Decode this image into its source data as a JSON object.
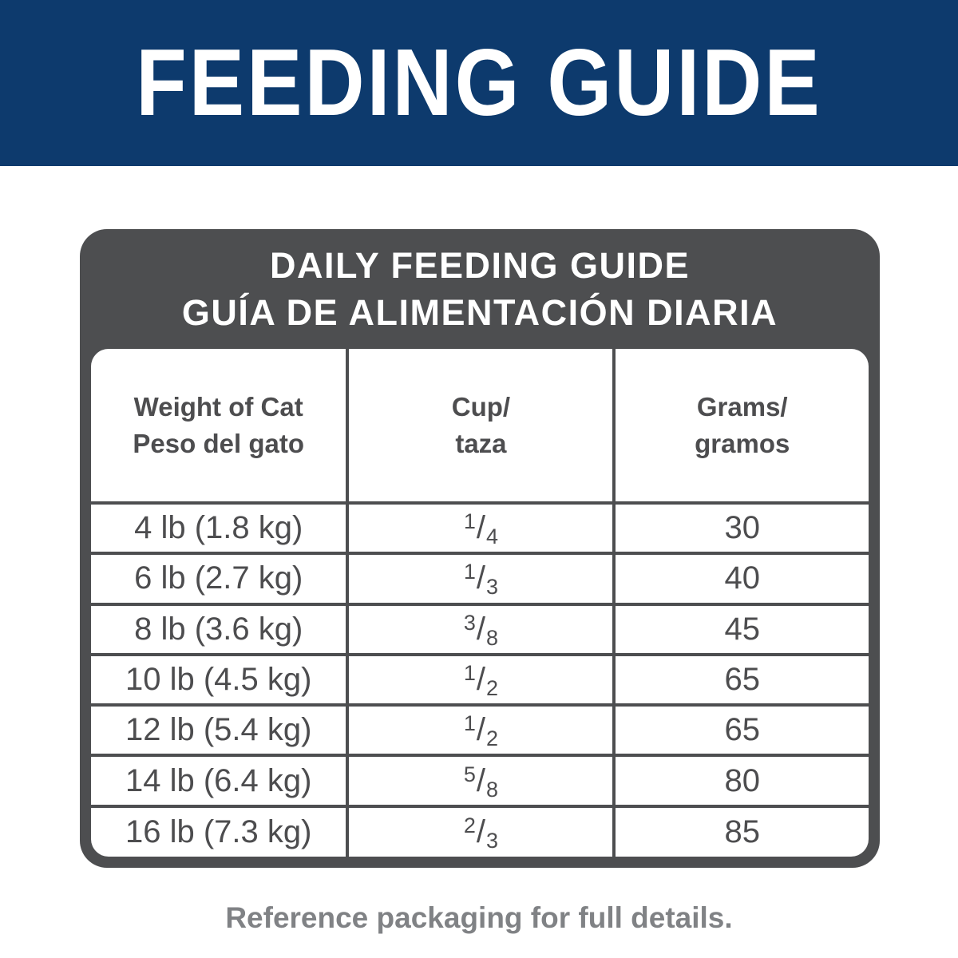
{
  "colors": {
    "banner-bg": "#0d3a6d",
    "banner-text": "#ffffff",
    "frame": "#4d4e50",
    "cell-text": "#4d4d4f",
    "footer-text": "#808285",
    "page-bg": "#ffffff"
  },
  "banner": {
    "title": "FEEDING GUIDE"
  },
  "card": {
    "title_line1": "DAILY FEEDING GUIDE",
    "title_line2": "GUÍA DE ALIMENTACIÓN DIARIA"
  },
  "table": {
    "columns": [
      {
        "line1": "Weight of Cat",
        "line2": "Peso del gato"
      },
      {
        "line1": "Cup/",
        "line2": "taza"
      },
      {
        "line1": "Grams/",
        "line2": "gramos"
      }
    ],
    "rows": [
      {
        "weight": "4 lb (1.8 kg)",
        "cup_num": "1",
        "cup_sep": "/",
        "cup_den": "4",
        "grams": "30"
      },
      {
        "weight": "6 lb (2.7 kg)",
        "cup_num": "1",
        "cup_sep": "/",
        "cup_den": "3",
        "grams": "40"
      },
      {
        "weight": "8 lb (3.6 kg)",
        "cup_num": "3",
        "cup_sep": "/",
        "cup_den": "8",
        "grams": "45"
      },
      {
        "weight": "10 lb (4.5 kg)",
        "cup_num": "1",
        "cup_sep": "/",
        "cup_den": "2",
        "grams": "65"
      },
      {
        "weight": "12 lb (5.4 kg)",
        "cup_num": "1",
        "cup_sep": "/",
        "cup_den": "2",
        "grams": "65"
      },
      {
        "weight": "14 lb (6.4 kg)",
        "cup_num": "5",
        "cup_sep": "/",
        "cup_den": "8",
        "grams": "80"
      },
      {
        "weight": "16 lb (7.3 kg)",
        "cup_num": "2",
        "cup_sep": "/",
        "cup_den": "3",
        "grams": "85"
      }
    ]
  },
  "footer": {
    "note": "Reference packaging for full details."
  }
}
